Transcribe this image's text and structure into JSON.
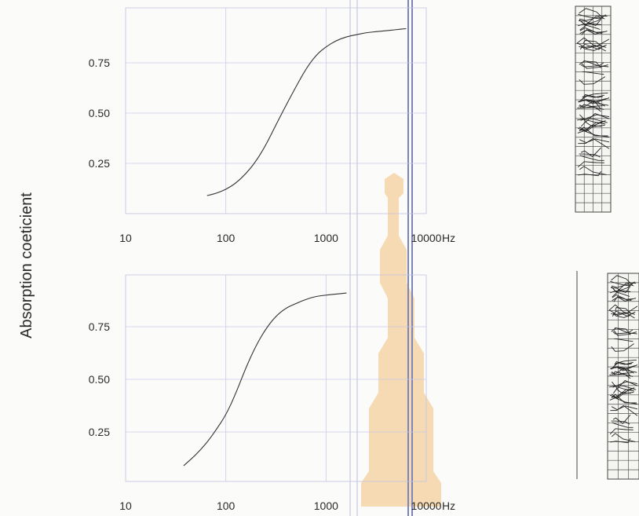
{
  "ylabel": "Absorption coeticient",
  "colors": {
    "curve": "#333333",
    "grid": "#c9cbe6",
    "watermark": "#f3c07a"
  },
  "chart_data": [
    {
      "type": "line",
      "xscale": "log",
      "xlim": [
        10,
        10000
      ],
      "ylim": [
        0,
        1
      ],
      "x_ticks": [
        "10",
        "100",
        "1000",
        "10000"
      ],
      "x_unit": "Hz",
      "y_ticks": [
        "0.25",
        "0.50",
        "0.75"
      ],
      "grid": true,
      "series": [
        {
          "x": [
            65,
            80,
            100,
            125,
            160,
            200,
            250,
            315,
            400,
            500,
            630,
            800,
            1000,
            1250,
            1600,
            2000,
            2500,
            3150,
            4000,
            5000,
            6300
          ],
          "y": [
            0.09,
            0.1,
            0.12,
            0.15,
            0.2,
            0.26,
            0.34,
            0.44,
            0.54,
            0.63,
            0.72,
            0.79,
            0.83,
            0.86,
            0.88,
            0.89,
            0.9,
            0.905,
            0.91,
            0.915,
            0.92
          ]
        }
      ]
    },
    {
      "type": "line",
      "xscale": "log",
      "xlim": [
        10,
        10000
      ],
      "ylim": [
        0,
        1
      ],
      "x_ticks": [
        "10",
        "100",
        "1000",
        "10000"
      ],
      "x_unit": "Hz",
      "y_ticks": [
        "0.25",
        "0.50",
        "0.75"
      ],
      "grid": true,
      "series": [
        {
          "x": [
            38,
            50,
            65,
            80,
            100,
            125,
            160,
            200,
            250,
            315,
            400,
            500,
            630,
            800,
            1000,
            1250,
            1600
          ],
          "y": [
            0.09,
            0.14,
            0.2,
            0.26,
            0.33,
            0.43,
            0.56,
            0.66,
            0.74,
            0.8,
            0.84,
            0.86,
            0.88,
            0.895,
            0.9,
            0.905,
            0.91
          ]
        }
      ]
    }
  ]
}
